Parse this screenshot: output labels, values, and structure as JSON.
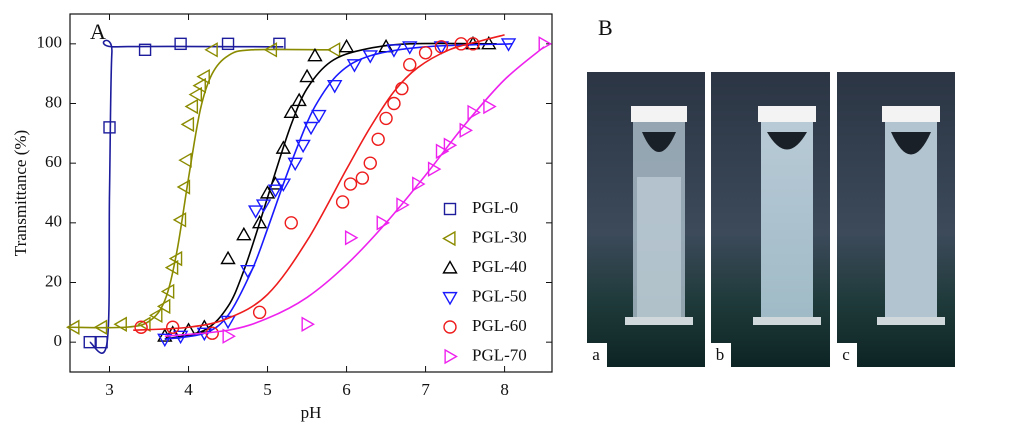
{
  "chart_data": {
    "type": "scatter",
    "panel_label": "A",
    "x_label": "pH",
    "y_label": "Transmittance (%)",
    "xlim": [
      2.5,
      8.6
    ],
    "ylim": [
      -10,
      110
    ],
    "xticks": [
      3,
      4,
      5,
      6,
      7,
      8
    ],
    "yticks": [
      0,
      20,
      40,
      60,
      80,
      100
    ],
    "series": [
      {
        "name": "PGL-0",
        "color": "#1c1c9c",
        "marker": "square",
        "x": [
          2.75,
          2.9,
          3.0,
          3.45,
          3.9,
          4.5,
          5.15
        ],
        "values": [
          0,
          0,
          72,
          98,
          100,
          100,
          100
        ],
        "fit_x": [
          2.75,
          2.97,
          3.0,
          3.03,
          3.1,
          5.2
        ],
        "fit_values": [
          0,
          0,
          50,
          97,
          99,
          99
        ]
      },
      {
        "name": "PGL-30",
        "color": "#8b8b00",
        "marker": "left",
        "x": [
          2.55,
          2.9,
          3.15,
          3.45,
          3.6,
          3.7,
          3.75,
          3.8,
          3.85,
          3.9,
          3.95,
          3.97,
          4.0,
          4.05,
          4.1,
          4.15,
          4.2,
          4.3,
          5.05,
          5.85
        ],
        "values": [
          5,
          5,
          6,
          6,
          9,
          12,
          17,
          25,
          28,
          41,
          52,
          61,
          73,
          79,
          83,
          86,
          89,
          98,
          98,
          98
        ],
        "fit_x": [
          2.5,
          3.2,
          3.5,
          3.7,
          3.85,
          4.0,
          4.15,
          4.3,
          4.5,
          4.8,
          5.8
        ],
        "fit_values": [
          5,
          5,
          7,
          14,
          30,
          55,
          78,
          90,
          96,
          98,
          98
        ]
      },
      {
        "name": "PGL-40",
        "color": "#000000",
        "marker": "up",
        "x": [
          3.7,
          3.8,
          4.0,
          4.2,
          4.5,
          4.7,
          4.9,
          5.0,
          5.1,
          5.2,
          5.3,
          5.4,
          5.5,
          5.6,
          6.0,
          6.5,
          7.6,
          7.8
        ],
        "values": [
          2,
          3,
          4,
          5,
          28,
          36,
          40,
          50,
          53,
          65,
          77,
          81,
          89,
          96,
          99,
          99,
          100,
          100
        ],
        "fit_x": [
          3.7,
          4.2,
          4.5,
          4.7,
          4.9,
          5.1,
          5.3,
          5.5,
          5.8,
          6.2,
          6.8,
          7.9
        ],
        "fit_values": [
          1,
          4,
          12,
          24,
          40,
          57,
          73,
          85,
          94,
          98,
          100,
          100
        ]
      },
      {
        "name": "PGL-50",
        "color": "#1a1aff",
        "marker": "down",
        "x": [
          3.7,
          3.9,
          4.2,
          4.5,
          4.75,
          4.85,
          4.95,
          5.1,
          5.2,
          5.35,
          5.45,
          5.55,
          5.65,
          5.85,
          6.1,
          6.3,
          6.6,
          6.8,
          7.2,
          8.05
        ],
        "values": [
          1,
          2,
          3,
          7,
          24,
          44,
          46,
          51,
          53,
          60,
          66,
          72,
          76,
          86,
          93,
          96,
          98,
          99,
          99,
          100
        ],
        "fit_x": [
          3.7,
          4.2,
          4.5,
          4.8,
          5.0,
          5.2,
          5.4,
          5.6,
          5.9,
          6.3,
          7.0,
          8.1
        ],
        "fit_values": [
          1,
          3,
          9,
          24,
          38,
          53,
          67,
          79,
          90,
          96,
          99,
          100
        ]
      },
      {
        "name": "PGL-60",
        "color": "#ee1c1c",
        "marker": "circle",
        "x": [
          3.4,
          3.8,
          4.3,
          4.9,
          5.3,
          5.95,
          6.05,
          6.2,
          6.3,
          6.4,
          6.5,
          6.6,
          6.7,
          6.8,
          7.0,
          7.2,
          7.45,
          7.6
        ],
        "values": [
          5,
          5,
          3,
          10,
          40,
          47,
          53,
          55,
          60,
          68,
          75,
          80,
          85,
          93,
          97,
          99,
          100,
          100
        ],
        "fit_x": [
          3.3,
          4.0,
          4.5,
          5.0,
          5.5,
          6.0,
          6.3,
          6.6,
          6.9,
          7.3,
          7.7,
          8.0
        ],
        "fit_values": [
          4,
          5,
          8,
          16,
          34,
          58,
          72,
          84,
          92,
          98,
          101,
          103
        ]
      },
      {
        "name": "PGL-70",
        "color": "#ee22ee",
        "marker": "right",
        "x": [
          4.5,
          5.5,
          6.05,
          6.45,
          6.7,
          6.9,
          7.1,
          7.2,
          7.3,
          7.5,
          7.6,
          7.8,
          8.5
        ],
        "values": [
          2,
          6,
          35,
          40,
          46,
          53,
          58,
          64,
          66,
          71,
          77,
          79,
          100
        ],
        "fit_x": [
          3.7,
          4.5,
          5.0,
          5.5,
          6.0,
          6.5,
          7.0,
          7.5,
          8.0,
          8.5
        ],
        "fit_values": [
          2,
          4,
          8,
          15,
          26,
          40,
          56,
          73,
          88,
          99
        ]
      }
    ]
  },
  "panel_b": {
    "label": "B",
    "images": [
      "a",
      "b",
      "c"
    ]
  }
}
